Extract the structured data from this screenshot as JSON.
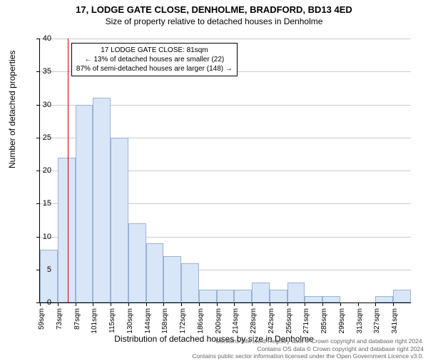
{
  "title": "17, LODGE GATE CLOSE, DENHOLME, BRADFORD, BD13 4ED",
  "subtitle": "Size of property relative to detached houses in Denholme",
  "y_axis_label": "Number of detached properties",
  "x_axis_label": "Distribution of detached houses by size in Denholme",
  "footer_line1": "Contains HM Land Registry data © Crown copyright and database right 2024.",
  "footer_line2": "Contains OS data © Crown copyright and database right 2024",
  "footer_line3": "Contains public sector information licensed under the Open Government Licence v3.0.",
  "annotation": {
    "line1": "17 LODGE GATE CLOSE: 81sqm",
    "line2": "← 13% of detached houses are smaller (22)",
    "line3": "87% of semi-detached houses are larger (148) →"
  },
  "chart": {
    "type": "histogram",
    "y_max": 40,
    "y_ticks": [
      0,
      5,
      10,
      15,
      20,
      25,
      30,
      35,
      40
    ],
    "x_labels": [
      "59sqm",
      "73sqm",
      "87sqm",
      "101sqm",
      "115sqm",
      "130sqm",
      "144sqm",
      "158sqm",
      "172sqm",
      "186sqm",
      "200sqm",
      "214sqm",
      "228sqm",
      "242sqm",
      "256sqm",
      "271sqm",
      "285sqm",
      "299sqm",
      "313sqm",
      "327sqm",
      "341sqm"
    ],
    "bar_values": [
      8,
      22,
      30,
      31,
      25,
      12,
      9,
      7,
      6,
      2,
      2,
      2,
      3,
      2,
      3,
      1,
      1,
      0,
      0,
      1,
      2
    ],
    "bar_fill": "#d9e6f7",
    "bar_stroke": "#9ab3d5",
    "grid_color": "#cccccc",
    "ref_line_color": "#cc0000",
    "ref_value": 81,
    "x_start": 59,
    "x_bin_width": 14
  }
}
